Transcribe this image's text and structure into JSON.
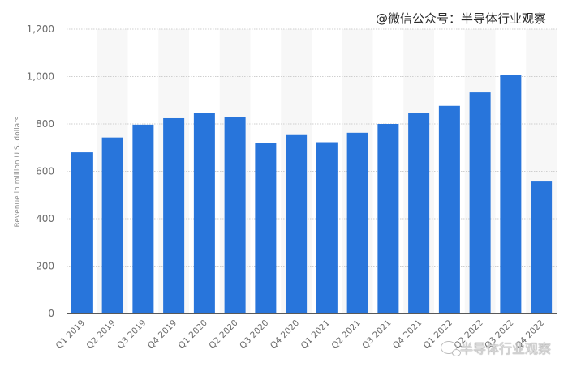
{
  "watermark": {
    "top_text": "@微信公众号：半导体行业观察",
    "bottom_text": "半导体行业观察",
    "bottom_icon": "wechat-icon"
  },
  "chart_data": {
    "type": "bar",
    "title": "",
    "xlabel": "",
    "ylabel": "Revenue in million U.S. dollars",
    "categories": [
      "Q1 2019",
      "Q2 2019",
      "Q3 2019",
      "Q4 2019",
      "Q1 2020",
      "Q2 2020",
      "Q3 2020",
      "Q4 2020",
      "Q1 2021",
      "Q2 2021",
      "Q3 2021",
      "Q4 2021",
      "Q1 2022",
      "Q2 2022",
      "Q3 2022",
      "Q4 2022"
    ],
    "values": [
      680,
      743,
      797,
      824,
      847,
      830,
      720,
      753,
      723,
      763,
      800,
      847,
      876,
      933,
      1006,
      557
    ],
    "ylim": [
      0,
      1200
    ],
    "yticks": [
      0,
      200,
      400,
      600,
      800,
      1000,
      1200
    ],
    "ytick_labels": [
      "0",
      "200",
      "400",
      "600",
      "800",
      "1,000",
      "1,200"
    ],
    "grid": true,
    "legend": null,
    "bar_color": "#2875DB",
    "band_color": "#f7f7f7"
  }
}
